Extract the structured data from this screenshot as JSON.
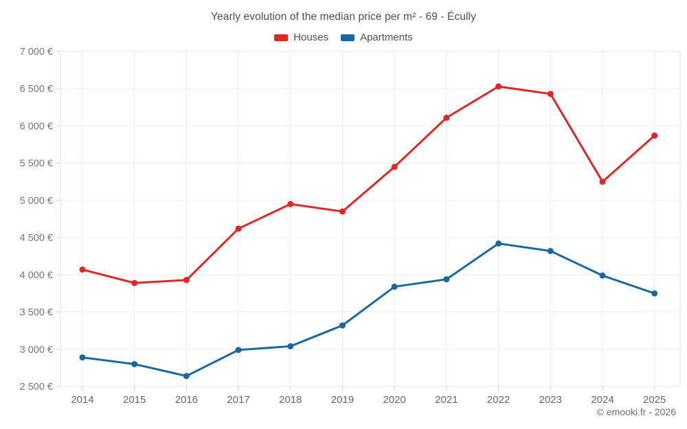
{
  "chart_data": {
    "type": "line",
    "title": "Yearly evolution of the median price per m² - 69 - Écully",
    "categories": [
      "2014",
      "2015",
      "2016",
      "2017",
      "2018",
      "2019",
      "2020",
      "2021",
      "2022",
      "2023",
      "2024",
      "2025"
    ],
    "series": [
      {
        "name": "Houses",
        "color": "#e02726",
        "values": [
          4070,
          3890,
          3930,
          4620,
          4950,
          4850,
          5450,
          6110,
          6530,
          6430,
          5250,
          5870
        ]
      },
      {
        "name": "Apartments",
        "color": "#1a699c",
        "values": [
          2890,
          2800,
          2640,
          2990,
          3040,
          3320,
          3840,
          3940,
          4420,
          4320,
          3990,
          3750
        ]
      }
    ],
    "xlabel": "",
    "ylabel": "",
    "ylim": [
      2500,
      7000
    ],
    "ytick_step": 500,
    "ytick_labels": [
      "7 000 €",
      "6 500 €",
      "6 000 €",
      "5 500 €",
      "5 000 €",
      "4 500 €",
      "4 000 €",
      "3 500 €",
      "3 000 €",
      "2 500 €"
    ],
    "grid": true,
    "legend_position": "top"
  },
  "footer": {
    "attribution": "© emooki.fr - 2026"
  },
  "style": {
    "grid_color": "#ededed",
    "frame_color": "#e3e3e3",
    "tick_color": "#cfcfcf",
    "ytick_text_color": "#757575",
    "xtick_text_color": "#666666"
  }
}
